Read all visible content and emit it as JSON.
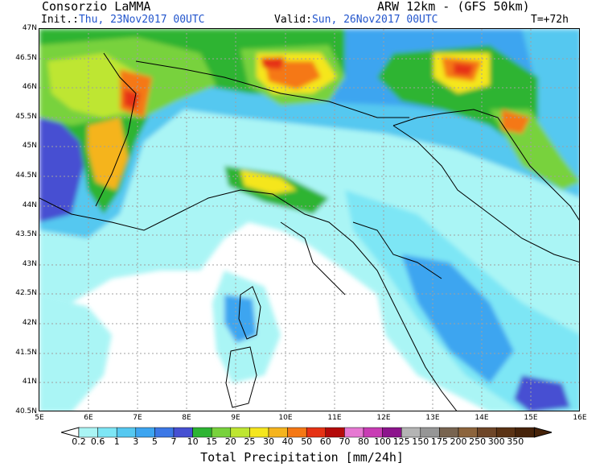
{
  "header": {
    "producer": "Consorzio LaMMA",
    "model": "ARW 12km - (GFS 50km)",
    "init_label": "Init.:",
    "init_value": "Thu, 23Nov2017 00UTC",
    "valid_label": "Valid:",
    "valid_value": "Sun, 26Nov2017 00UTC",
    "lead_time": "T=+72h"
  },
  "map": {
    "lat_labels": [
      "47N",
      "46.5N",
      "46N",
      "45.5N",
      "45N",
      "44.5N",
      "44N",
      "43.5N",
      "43N",
      "42.5N",
      "42N",
      "41.5N",
      "41N",
      "40.5N"
    ],
    "lon_labels": [
      "5E",
      "6E",
      "7E",
      "8E",
      "9E",
      "10E",
      "11E",
      "12E",
      "13E",
      "14E",
      "15E",
      "16E"
    ],
    "lat_range": [
      40.5,
      47
    ],
    "lon_range": [
      5,
      16
    ],
    "field": "Total Precipitation",
    "colors": {
      "land_bg": "#ffffff",
      "border_line": "#000000",
      "grid": "#a0a0a0"
    }
  },
  "colorbar": {
    "title": "Total Precipitation [mm/24h]",
    "levels": [
      "0.2",
      "0.6",
      "1",
      "3",
      "5",
      "7",
      "10",
      "15",
      "20",
      "25",
      "30",
      "40",
      "50",
      "60",
      "70",
      "80",
      "100",
      "125",
      "150",
      "175",
      "200",
      "250",
      "300",
      "350"
    ],
    "colors": [
      "#aaf5f5",
      "#7de6f5",
      "#55c8f0",
      "#3da5f0",
      "#3c78e6",
      "#4650d2",
      "#2db432",
      "#78d23c",
      "#bee632",
      "#f5e61e",
      "#f5b41e",
      "#f57814",
      "#e63214",
      "#b40a0a",
      "#e678d2",
      "#c83cb4",
      "#8c148c",
      "#b4b4b4",
      "#969696",
      "#786450",
      "#8c643c",
      "#6e4628",
      "#5a3214",
      "#46230a"
    ]
  }
}
